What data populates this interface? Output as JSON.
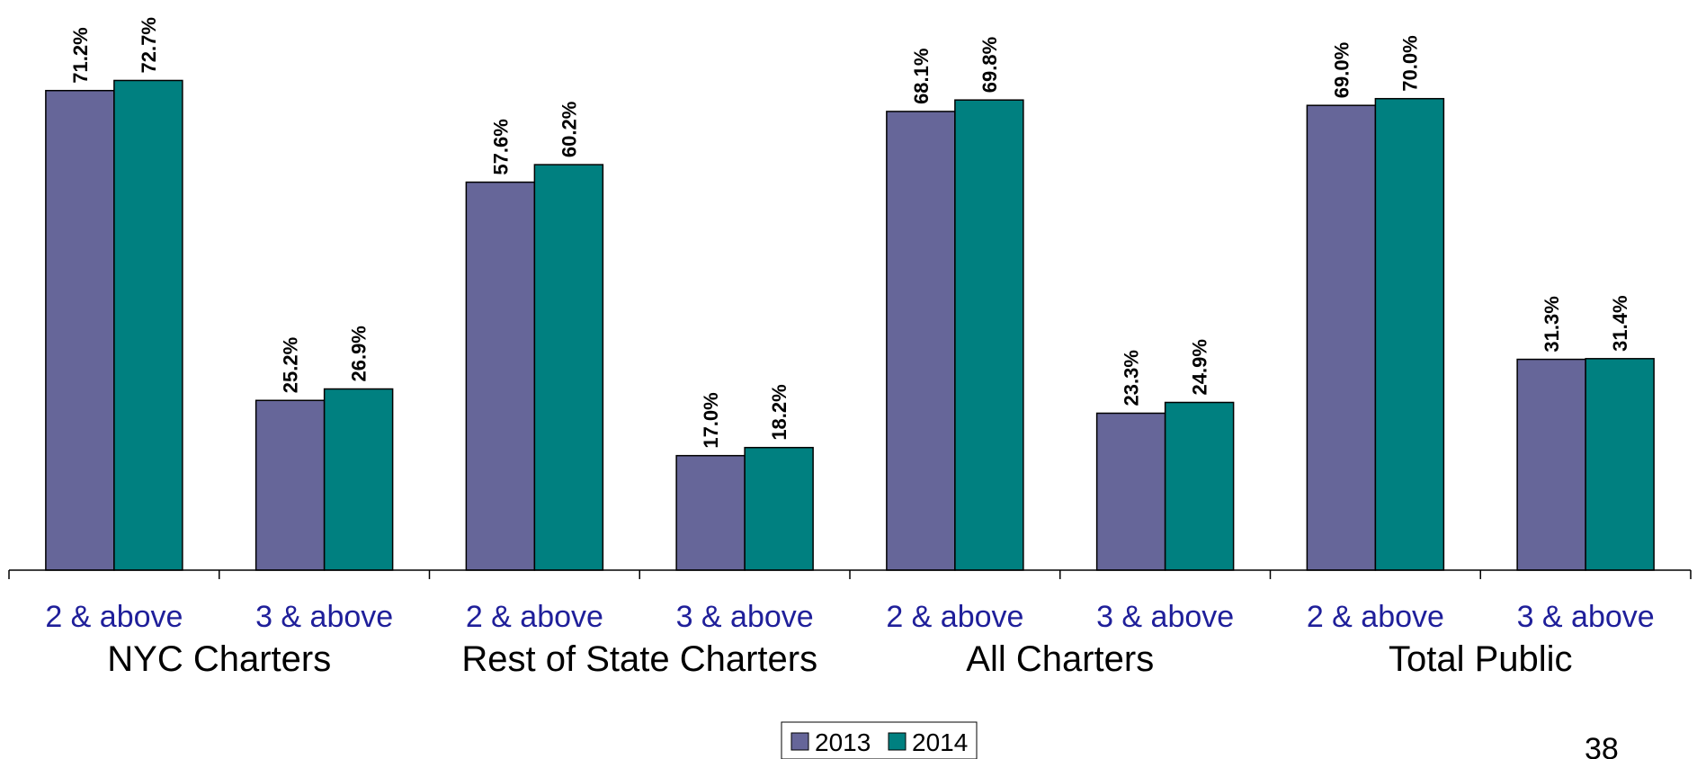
{
  "chart_data": {
    "type": "bar",
    "categories": [
      "2 & above",
      "3 & above",
      "2 & above",
      "3 & above",
      "2 & above",
      "3 & above",
      "2 & above",
      "3 & above"
    ],
    "groups": [
      "NYC Charters",
      "Rest of State Charters",
      "All Charters",
      "Total Public"
    ],
    "series": [
      {
        "name": "2013",
        "color": "#666699",
        "values": [
          71.2,
          25.2,
          57.6,
          17.0,
          68.1,
          23.3,
          69.0,
          31.3
        ],
        "labels": [
          "71.2%",
          "25.2%",
          "57.6%",
          "17.0%",
          "68.1%",
          "23.3%",
          "69.0%",
          "31.3%"
        ]
      },
      {
        "name": "2014",
        "color": "#008080",
        "values": [
          72.7,
          26.9,
          60.2,
          18.2,
          69.8,
          24.9,
          70.0,
          31.4
        ],
        "labels": [
          "72.7%",
          "26.9%",
          "60.2%",
          "18.2%",
          "69.8%",
          "24.9%",
          "70.0%",
          "31.4%"
        ]
      }
    ],
    "ylim": [
      0,
      100
    ],
    "grid": false,
    "legend": "bottom-center"
  },
  "page_number": "38"
}
